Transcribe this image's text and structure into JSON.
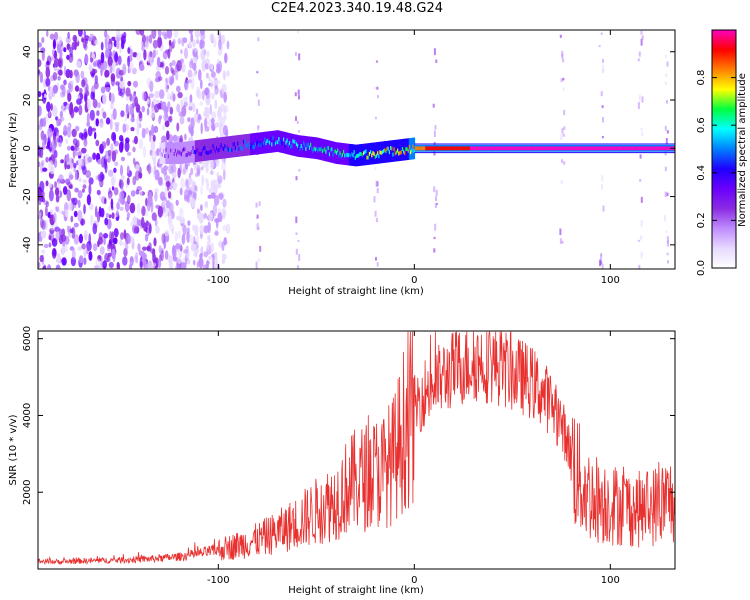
{
  "title": "C2E4.2023.340.19.48.G24",
  "colors": {
    "snr_line": "#e8302f",
    "colormap": [
      "#ffffff",
      "#e7d9ff",
      "#bf8cff",
      "#8a2be2",
      "#6a00ff",
      "#1e00ff",
      "#0080ff",
      "#00ffff",
      "#00ff40",
      "#ffff00",
      "#ff8000",
      "#ff0000",
      "#ff00c0"
    ]
  },
  "chart_data": [
    {
      "type": "heatmap",
      "xlabel": "Height of straight line (km)",
      "ylabel": "Frequency (Hz)",
      "xlim": [
        -192,
        133
      ],
      "ylim": [
        -50,
        49
      ],
      "xticks": [
        -100,
        0,
        100
      ],
      "yticks": [
        -40,
        -20,
        0,
        20,
        40
      ],
      "colorbar": {
        "label": "Normalized spectral amplitude",
        "range": [
          0.0,
          1.0
        ],
        "ticks": [
          0.0,
          0.2,
          0.4,
          0.6,
          0.8
        ]
      },
      "signal_track": {
        "x": [
          -130,
          -120,
          -110,
          -100,
          -90,
          -80,
          -70,
          -60,
          -50,
          -40,
          -30,
          -20,
          -10,
          0,
          10,
          20,
          40,
          60,
          80,
          100,
          120,
          133
        ],
        "frequency": [
          -2,
          -2,
          -1,
          0,
          1,
          2,
          3,
          1,
          0,
          -2,
          -3,
          -2,
          -1,
          0,
          0,
          0,
          0,
          0,
          0,
          0,
          0,
          0
        ],
        "amplitude": [
          0.2,
          0.3,
          0.4,
          0.45,
          0.5,
          0.55,
          0.6,
          0.6,
          0.65,
          0.65,
          0.7,
          0.75,
          0.8,
          0.85,
          0.9,
          0.95,
          0.97,
          0.97,
          0.97,
          0.97,
          0.97,
          0.97
        ]
      },
      "noise_region_x": [
        -192,
        -100
      ]
    },
    {
      "type": "line",
      "xlabel": "Height of straight line (km)",
      "ylabel": "SNR (10 * v/v)",
      "xlim": [
        -192,
        133
      ],
      "ylim": [
        0,
        6200
      ],
      "xticks": [
        -100,
        0,
        100
      ],
      "yticks": [
        2000,
        4000,
        6000
      ],
      "series": [
        {
          "x": [
            -192,
            -180,
            -170,
            -160,
            -150,
            -140,
            -130,
            -120,
            -110,
            -100,
            -90,
            -80,
            -70,
            -60,
            -50,
            -40,
            -35,
            -30,
            -25,
            -20,
            -15,
            -10,
            -5,
            0,
            5,
            10,
            15,
            20,
            25,
            30,
            35,
            40,
            45,
            50,
            55,
            60,
            65,
            70,
            75,
            80,
            85,
            90,
            95,
            100,
            105,
            110,
            115,
            120,
            125,
            130,
            133
          ],
          "values": [
            200,
            190,
            210,
            220,
            230,
            250,
            280,
            320,
            400,
            500,
            620,
            760,
            950,
            1200,
            1500,
            1800,
            2100,
            2300,
            2400,
            2500,
            2600,
            2900,
            3700,
            4200,
            4600,
            4800,
            5000,
            5200,
            5300,
            5400,
            5400,
            5350,
            5250,
            5100,
            5000,
            4850,
            4600,
            4300,
            3800,
            3000,
            2200,
            1900,
            1800,
            1700,
            1650,
            1600,
            1550,
            1600,
            1700,
            1800,
            1800
          ]
        }
      ]
    }
  ]
}
